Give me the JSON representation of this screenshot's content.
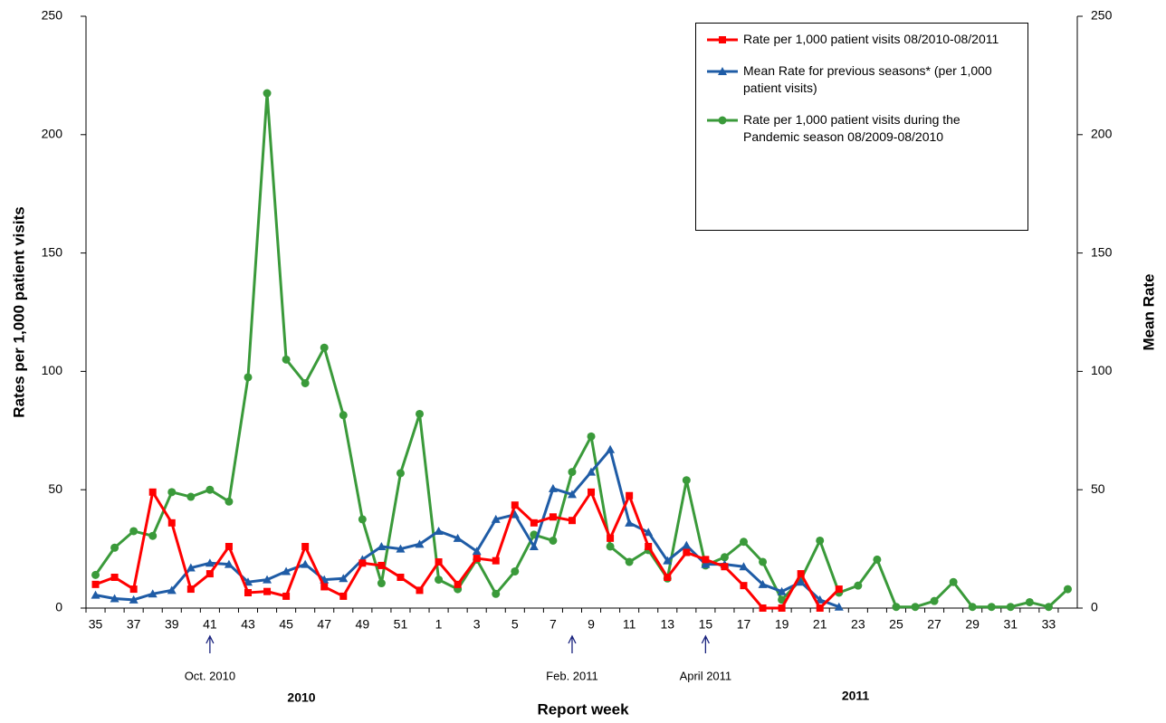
{
  "chart_data": {
    "type": "line",
    "y_label": "Rates per 1,000 patient visits",
    "y2_label": "Mean Rate",
    "x_label": "Report week",
    "categories": [
      "35",
      null,
      "37",
      null,
      "39",
      null,
      "41",
      null,
      "43",
      null,
      "45",
      null,
      "47",
      null,
      "49",
      null,
      "51",
      null,
      "1",
      null,
      "3",
      null,
      "5",
      null,
      "7",
      null,
      "9",
      null,
      "11",
      null,
      "13",
      null,
      "15",
      null,
      "17",
      null,
      "19",
      null,
      "21",
      null,
      "23",
      null,
      "25",
      null,
      "27",
      null,
      "29",
      null,
      "31",
      null,
      "33",
      null
    ],
    "series": [
      {
        "name": "Rate per 1,000 patient visits 08/2010-08/2011",
        "color": "#ff0000",
        "marker": "square",
        "values": [
          10,
          13,
          8,
          49,
          36,
          8,
          14.5,
          26,
          6.5,
          7,
          5,
          26,
          9,
          5,
          19,
          18,
          13,
          7.5,
          19.5,
          10,
          21,
          20,
          43.5,
          36,
          38.5,
          37,
          49,
          29.5,
          47.5,
          26,
          13,
          23.5,
          20.5,
          17.5,
          9.5,
          0,
          0,
          14.5,
          0,
          8,
          null,
          null,
          null,
          null,
          null,
          null,
          null,
          null,
          null,
          null,
          null,
          null
        ]
      },
      {
        "name": "Mean Rate for previous seasons* (per 1,000 patient visits)",
        "color": "#1f5ca6",
        "marker": "triangle",
        "axis": "y2",
        "values": [
          5.5,
          4,
          3.5,
          6,
          7.5,
          17,
          19,
          18.5,
          11,
          12,
          15.5,
          18.5,
          12,
          12.5,
          20.5,
          26,
          25,
          27,
          32.5,
          29.5,
          24,
          37.5,
          39.5,
          26,
          50.5,
          48,
          57.5,
          67,
          36,
          32,
          20,
          26.5,
          18.5,
          18.5,
          17.5,
          10,
          7,
          11,
          3.5,
          0.5,
          null,
          null,
          null,
          null,
          null,
          null,
          null,
          null,
          null,
          null,
          null,
          null
        ]
      },
      {
        "name": "Rate per 1,000 patient visits during the Pandemic season 08/2009-08/2010",
        "color": "#3a9a3a",
        "marker": "circle",
        "values": [
          14,
          25.5,
          32.5,
          30.5,
          49,
          47,
          50,
          45,
          97.5,
          217.5,
          105,
          95,
          110,
          81.5,
          37.5,
          10.5,
          57,
          82,
          12,
          8,
          20.5,
          6,
          15.5,
          31,
          28.5,
          57.5,
          72.5,
          26,
          19.5,
          24.5,
          12.5,
          54,
          18,
          21.5,
          28,
          19.5,
          3.5,
          12,
          28.5,
          6.5,
          9.5,
          20.5,
          0.5,
          0.5,
          3,
          11,
          0.5,
          0.5,
          0.5,
          2.5,
          0.5,
          8
        ]
      }
    ],
    "ylim": [
      0,
      250
    ],
    "yticks": [
      0,
      50,
      100,
      150,
      200,
      250
    ],
    "y2lim": [
      0,
      250
    ],
    "y2ticks": [
      0,
      50,
      100,
      150,
      200,
      250
    ],
    "annotations": [
      "Oct. 2010",
      "Feb. 2011",
      "April 2011",
      "2010",
      "2011"
    ]
  }
}
